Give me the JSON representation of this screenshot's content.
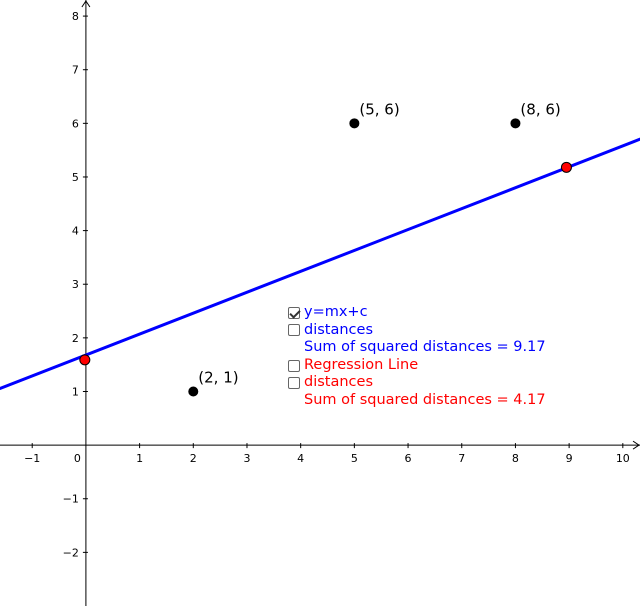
{
  "chart_data": {
    "type": "scatter",
    "xlim": [
      -1.6,
      10.32
    ],
    "ylim": [
      -3,
      8.3
    ],
    "x_ticks": [
      -1,
      1,
      2,
      3,
      4,
      5,
      6,
      7,
      8,
      9,
      10
    ],
    "y_ticks": [
      -2,
      -1,
      1,
      2,
      3,
      4,
      5,
      6,
      7,
      8
    ],
    "origin_label": "0",
    "grid": false,
    "points": [
      {
        "x": 2,
        "y": 1,
        "label": "(2, 1)"
      },
      {
        "x": 5,
        "y": 6,
        "label": "(5, 6)"
      },
      {
        "x": 8,
        "y": 6,
        "label": "(8, 6)"
      }
    ],
    "line": {
      "slope": 0.39,
      "intercept": 1.68,
      "color": "#0000ff"
    },
    "handles": [
      {
        "x": -0.02,
        "y": 1.59
      },
      {
        "x": 8.95,
        "y": 5.18
      }
    ],
    "handle_color": "#ff0000"
  },
  "panel": {
    "line_toggle": {
      "label": "y=mx+c",
      "checked": true
    },
    "line_distances": {
      "label": "distances",
      "checked": false
    },
    "line_sum": "Sum of squared distances = 9.17",
    "regression_toggle": {
      "label": "Regression Line",
      "checked": false
    },
    "regression_distances": {
      "label": "distances",
      "checked": false
    },
    "regression_sum": "Sum of squared distances =  4.17"
  },
  "colors": {
    "line": "#0000ff",
    "regression": "#ff0000",
    "point": "#000000"
  }
}
